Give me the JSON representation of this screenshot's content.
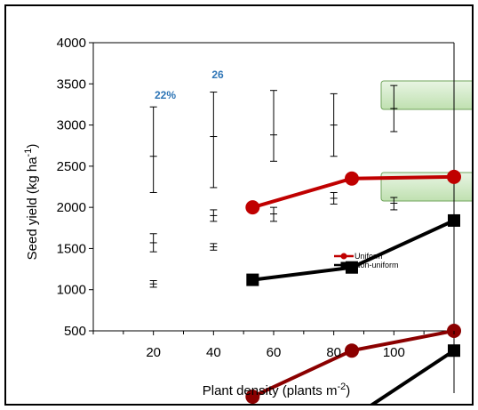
{
  "chart_data": {
    "type": "line",
    "xlabel_main": "Plant density (plants m",
    "xlabel_sup": "-2",
    "xlabel_end": ")",
    "ylabel_main": "Seed yield (kg ha",
    "ylabel_sup": "-1",
    "ylabel_end": ")",
    "xlim": [
      0,
      120
    ],
    "ylim": [
      500,
      4000
    ],
    "x_ticks": [
      "20",
      "40",
      "60",
      "80",
      "100"
    ],
    "y_ticks": [
      "500",
      "1000",
      "1500",
      "2000",
      "2500",
      "3000",
      "3500",
      "4000"
    ],
    "annotations": [
      "22%",
      "26"
    ],
    "error_bars": [
      {
        "x": 20,
        "low": 2180,
        "mid": 2620,
        "high": 3220
      },
      {
        "x": 20,
        "low": 1460,
        "mid": 1570,
        "high": 1680
      },
      {
        "x": 20,
        "low": 1030,
        "mid": 1070,
        "high": 1110
      },
      {
        "x": 40,
        "low": 2240,
        "mid": 2860,
        "high": 3400
      },
      {
        "x": 40,
        "low": 1830,
        "mid": 1900,
        "high": 1970
      },
      {
        "x": 40,
        "low": 1480,
        "mid": 1520,
        "high": 1560
      },
      {
        "x": 60,
        "low": 2560,
        "mid": 2880,
        "high": 3420
      },
      {
        "x": 60,
        "low": 1830,
        "mid": 1920,
        "high": 2000
      },
      {
        "x": 80,
        "low": 2620,
        "mid": 3000,
        "high": 3380
      },
      {
        "x": 80,
        "low": 2040,
        "mid": 2110,
        "high": 2180
      },
      {
        "x": 100,
        "low": 2920,
        "mid": 3200,
        "high": 3480
      },
      {
        "x": 100,
        "low": 1970,
        "mid": 2050,
        "high": 2120
      }
    ],
    "series": [
      {
        "name": "Uniform",
        "color": "#c00000",
        "marker": "circle",
        "x": [
          53,
          86,
          120
        ],
        "y": [
          2000,
          2350,
          2370
        ]
      },
      {
        "name": "Non-uniform",
        "color": "#000000",
        "marker": "square",
        "x": [
          53,
          86,
          120
        ],
        "y": [
          1120,
          1270,
          1840
        ]
      }
    ],
    "overflow_series": [
      {
        "color": "#8b0000",
        "marker": "circle",
        "x": [
          53,
          86,
          120
        ],
        "y": [
          -300,
          260,
          500
        ]
      },
      {
        "color": "#000000",
        "marker": "square",
        "x": [
          86,
          120
        ],
        "y": [
          -560,
          260
        ]
      }
    ],
    "callout_boxes": 2,
    "legend_position": "center-right"
  }
}
